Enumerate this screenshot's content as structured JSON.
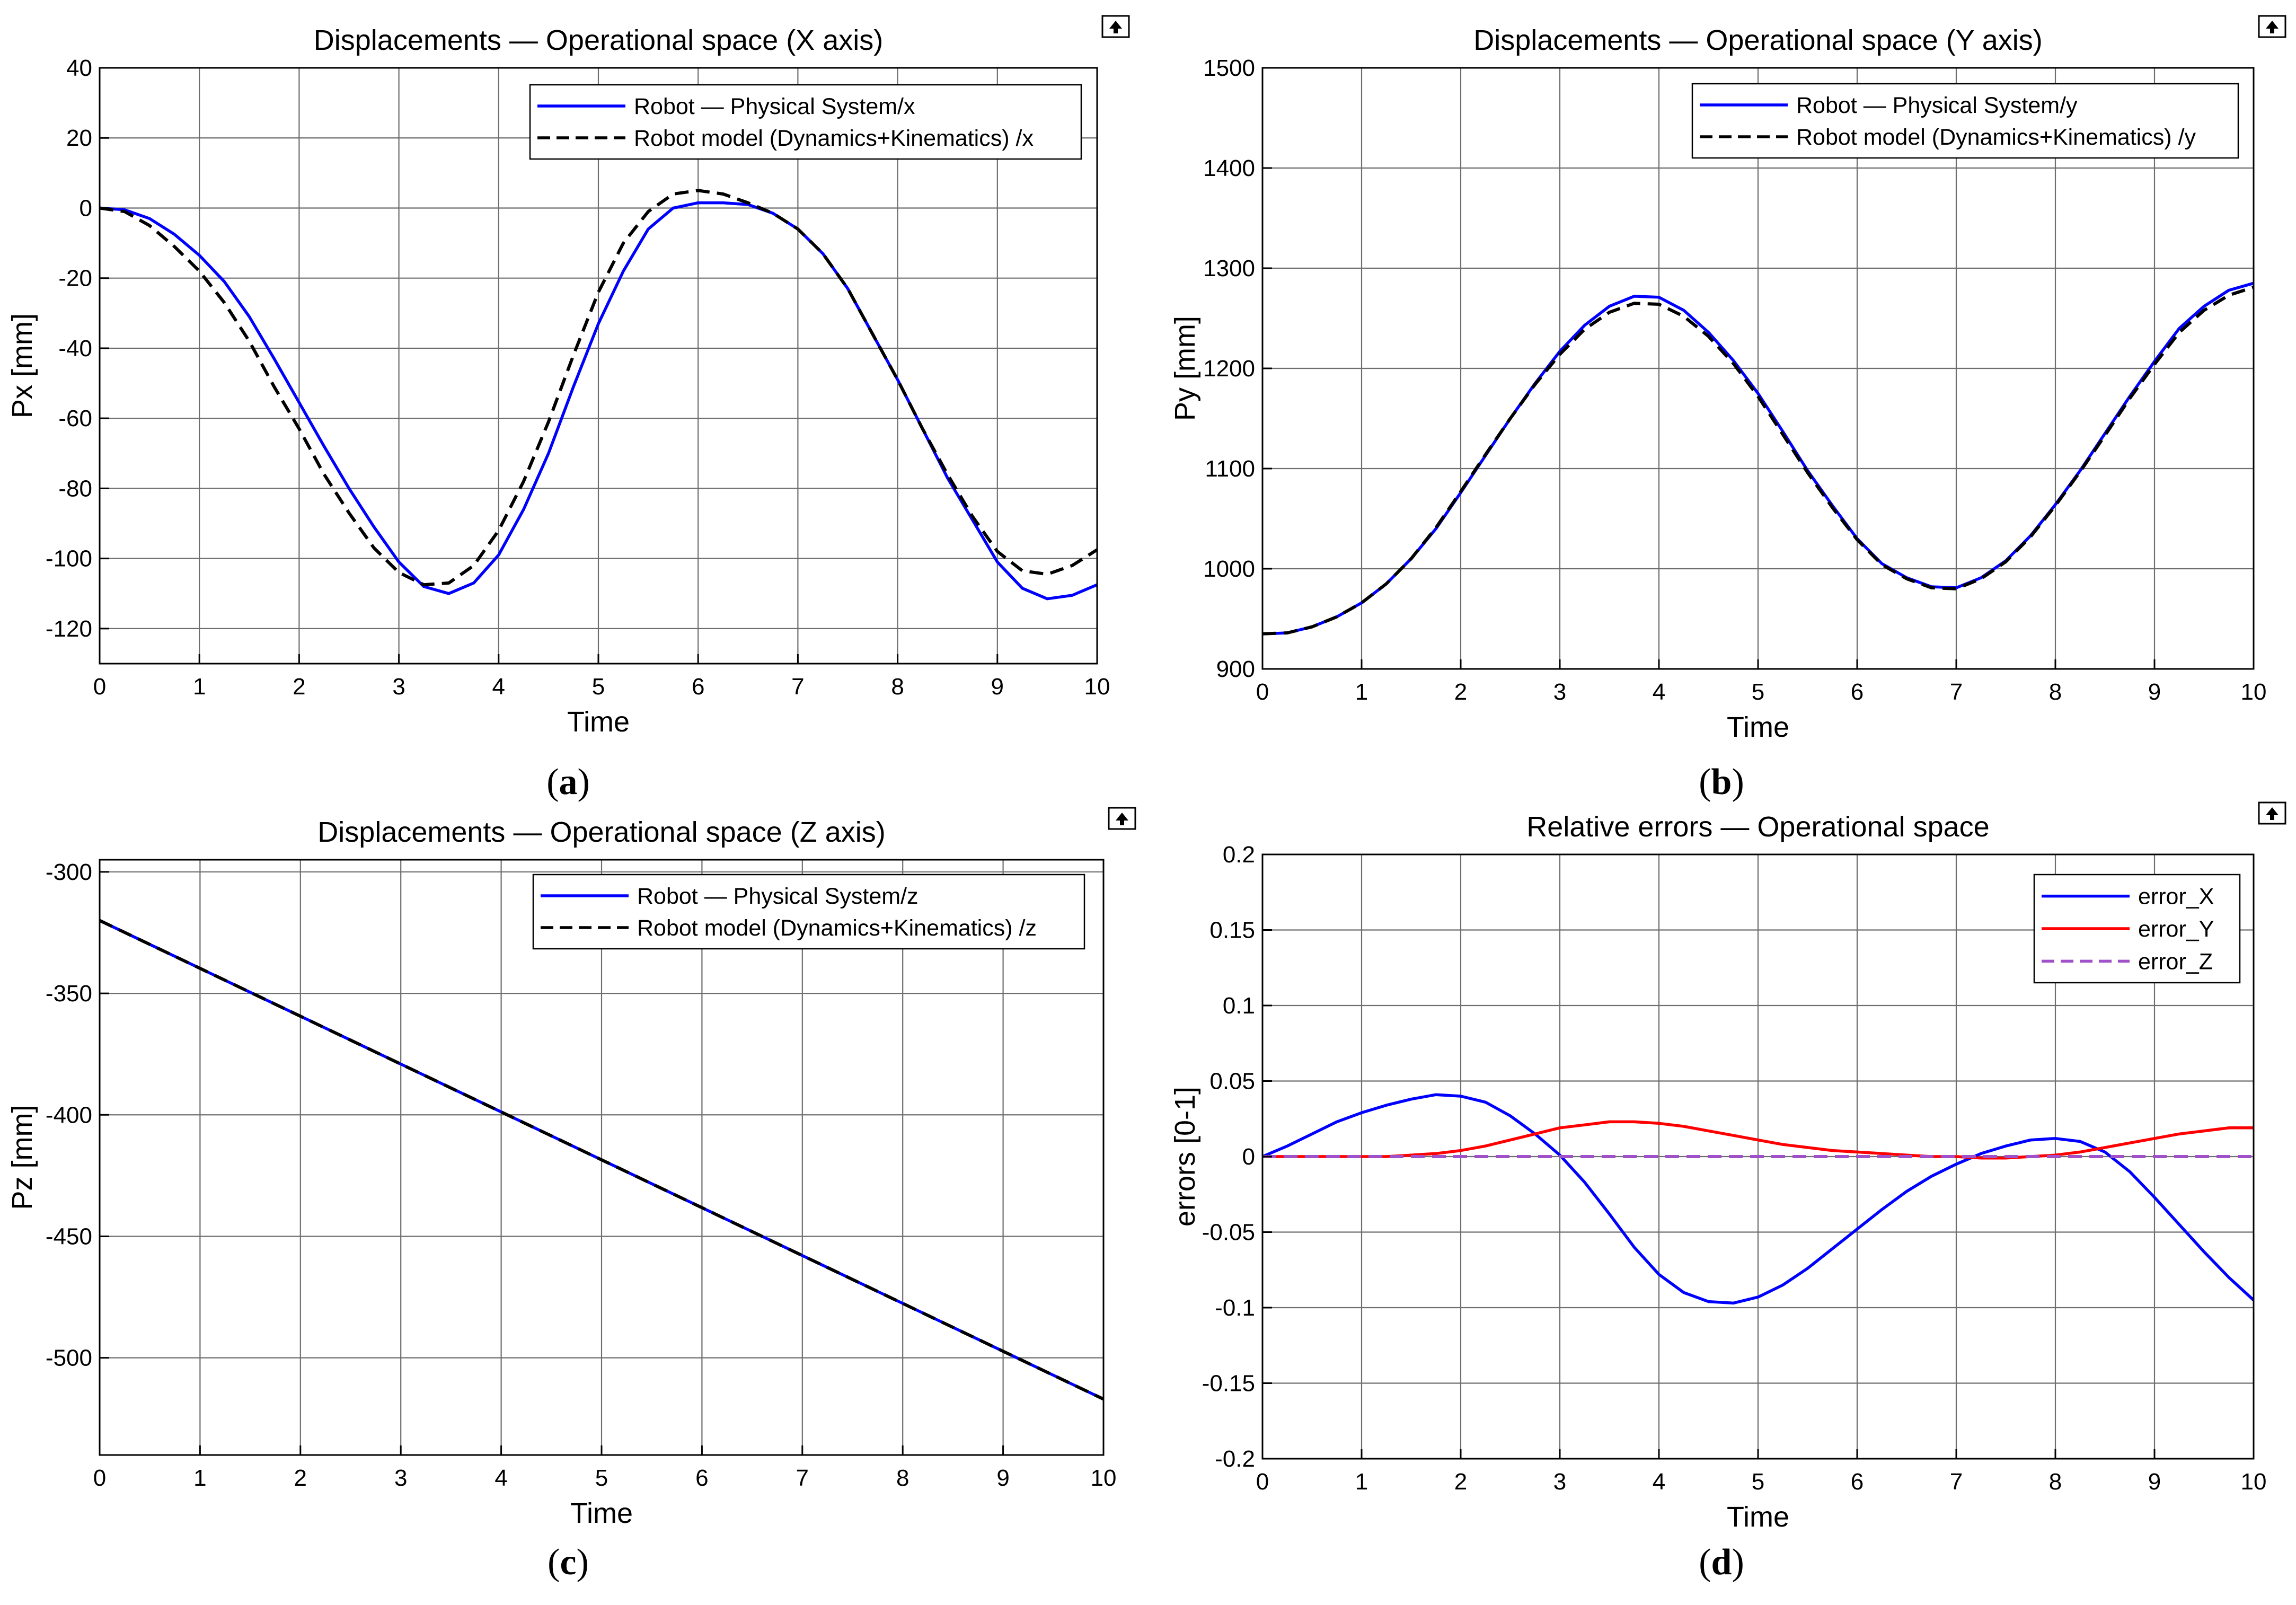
{
  "colors": {
    "blue": "#0000ff",
    "black": "#000000",
    "red": "#ff0000",
    "purple": "#a050c8",
    "grid": "#6e6e6e"
  },
  "dock_icon": "undock-arrow-icon",
  "chart_data": [
    {
      "id": "a",
      "type": "line",
      "caption_letter": "a",
      "caption_open": "(",
      "caption_close": ")",
      "title": "Displacements — Operational space (X axis)",
      "xlabel": "Time",
      "ylabel": "Px [mm]",
      "xlim": [
        0,
        10
      ],
      "ylim": [
        -130,
        40
      ],
      "xticks": [
        0,
        1,
        2,
        3,
        4,
        5,
        6,
        7,
        8,
        9,
        10
      ],
      "yticks": [
        -120,
        -100,
        -80,
        -60,
        -40,
        -20,
        0,
        20,
        40
      ],
      "ytick_labels": [
        "-120",
        "-100",
        "-80",
        "-60",
        "-40",
        "-20",
        "0",
        "20",
        "40"
      ],
      "grid": true,
      "legend_position": "top-right",
      "x": [
        0,
        0.25,
        0.5,
        0.75,
        1,
        1.25,
        1.5,
        1.75,
        2,
        2.25,
        2.5,
        2.75,
        3,
        3.25,
        3.5,
        3.75,
        4,
        4.25,
        4.5,
        4.75,
        5,
        5.25,
        5.5,
        5.75,
        6,
        6.25,
        6.5,
        6.75,
        7,
        7.25,
        7.5,
        7.75,
        8,
        8.25,
        8.5,
        8.75,
        9,
        9.25,
        9.5,
        9.75,
        10
      ],
      "series": [
        {
          "name": "Robot — Physical System/x",
          "color": "blue",
          "dash": "solid",
          "values": [
            0,
            -0.5,
            -3,
            -7.5,
            -13.5,
            -21,
            -31,
            -43,
            -55.5,
            -68,
            -80,
            -91,
            -101,
            -108,
            -110,
            -107,
            -99,
            -86,
            -70,
            -51,
            -33,
            -18,
            -6,
            0,
            1.5,
            1.5,
            1,
            -1.5,
            -6,
            -13,
            -23,
            -36,
            -49,
            -63,
            -77,
            -89,
            -101,
            -108.5,
            -111.5,
            -110.5,
            -107.5
          ]
        },
        {
          "name": "Robot model (Dynamics+Kinematics) /x",
          "color": "black",
          "dash": "dashed",
          "values": [
            0,
            -1,
            -5,
            -11,
            -18,
            -27,
            -38,
            -51,
            -63,
            -76,
            -87,
            -97,
            -104,
            -107.5,
            -107,
            -102,
            -92,
            -78,
            -61,
            -42,
            -24,
            -10,
            -1,
            4,
            5,
            4,
            1.5,
            -1.5,
            -6,
            -13,
            -23,
            -36,
            -49,
            -63,
            -76,
            -88,
            -98,
            -103.5,
            -104.5,
            -102,
            -97.5
          ]
        }
      ]
    },
    {
      "id": "b",
      "type": "line",
      "caption_letter": "b",
      "caption_open": "(",
      "caption_close": ")",
      "title": "Displacements — Operational space  (Y axis)",
      "xlabel": "Time",
      "ylabel": "Py [mm]",
      "xlim": [
        0,
        10
      ],
      "ylim": [
        900,
        1500
      ],
      "xticks": [
        0,
        1,
        2,
        3,
        4,
        5,
        6,
        7,
        8,
        9,
        10
      ],
      "yticks": [
        900,
        1000,
        1100,
        1200,
        1300,
        1400,
        1500
      ],
      "ytick_labels": [
        "900",
        "1000",
        "1100",
        "1200",
        "1300",
        "1400",
        "1500"
      ],
      "grid": true,
      "legend_position": "top-right",
      "x": [
        0,
        0.25,
        0.5,
        0.75,
        1,
        1.25,
        1.5,
        1.75,
        2,
        2.25,
        2.5,
        2.75,
        3,
        3.25,
        3.5,
        3.75,
        4,
        4.25,
        4.5,
        4.75,
        5,
        5.25,
        5.5,
        5.75,
        6,
        6.25,
        6.5,
        6.75,
        7,
        7.25,
        7.5,
        7.75,
        8,
        8.25,
        8.5,
        8.75,
        9,
        9.25,
        9.5,
        9.75,
        10
      ],
      "series": [
        {
          "name": "Robot — Physical System/y",
          "color": "blue",
          "dash": "solid",
          "values": [
            935,
            936,
            942,
            952,
            966,
            985,
            1010,
            1040,
            1076,
            1113,
            1150,
            1185,
            1217,
            1243,
            1262,
            1272,
            1271,
            1258,
            1236,
            1208,
            1175,
            1137,
            1098,
            1063,
            1030,
            1005,
            991,
            982,
            981,
            991,
            1008,
            1033,
            1064,
            1098,
            1135,
            1172,
            1207,
            1240,
            1262,
            1278,
            1285
          ]
        },
        {
          "name": "Robot model (Dynamics+Kinematics) /y",
          "color": "black",
          "dash": "dashed",
          "values": [
            935,
            936,
            942,
            952,
            966,
            985,
            1010,
            1041,
            1077,
            1114,
            1150,
            1184,
            1214,
            1239,
            1256,
            1265,
            1264,
            1252,
            1232,
            1205,
            1172,
            1134,
            1096,
            1061,
            1029,
            1004,
            990,
            981,
            980,
            990,
            1007,
            1032,
            1063,
            1097,
            1133,
            1170,
            1204,
            1236,
            1258,
            1273,
            1281
          ]
        }
      ]
    },
    {
      "id": "c",
      "type": "line",
      "caption_letter": "c",
      "caption_open": "(",
      "caption_close": ")",
      "title": "Displacements — Operational space (Z axis)",
      "xlabel": "Time",
      "ylabel": "Pz [mm]",
      "xlim": [
        0,
        10
      ],
      "ylim": [
        -540,
        -295
      ],
      "xticks": [
        0,
        1,
        2,
        3,
        4,
        5,
        6,
        7,
        8,
        9,
        10
      ],
      "yticks": [
        -500,
        -450,
        -400,
        -350,
        -300
      ],
      "ytick_labels": [
        "-500",
        "-450",
        "-400",
        "-350",
        "-300"
      ],
      "grid": true,
      "legend_position": "top-right",
      "x": [
        0,
        10
      ],
      "series": [
        {
          "name": "Robot — Physical System/z",
          "color": "blue",
          "dash": "solid",
          "values": [
            -320,
            -517
          ]
        },
        {
          "name": "Robot model (Dynamics+Kinematics) /z",
          "color": "black",
          "dash": "dashed",
          "values": [
            -320,
            -517
          ]
        }
      ]
    },
    {
      "id": "d",
      "type": "line",
      "caption_letter": "d",
      "caption_open": "(",
      "caption_close": ")",
      "title": "Relative errors — Operational space",
      "xlabel": "Time",
      "ylabel": "errors [0-1]",
      "xlim": [
        0,
        10
      ],
      "ylim": [
        -0.2,
        0.2
      ],
      "xticks": [
        0,
        1,
        2,
        3,
        4,
        5,
        6,
        7,
        8,
        9,
        10
      ],
      "yticks": [
        -0.2,
        -0.15,
        -0.1,
        -0.05,
        0,
        0.05,
        0.1,
        0.15,
        0.2
      ],
      "ytick_labels": [
        "-0.2",
        "-0.15",
        "-0.1",
        "-0.05",
        "0",
        "0.05",
        "0.1",
        "0.15",
        "0.2"
      ],
      "grid": true,
      "legend_position": "top-right",
      "x": [
        0,
        0.25,
        0.5,
        0.75,
        1,
        1.25,
        1.5,
        1.75,
        2,
        2.25,
        2.5,
        2.75,
        3,
        3.25,
        3.5,
        3.75,
        4,
        4.25,
        4.5,
        4.75,
        5,
        5.25,
        5.5,
        5.75,
        6,
        6.25,
        6.5,
        6.75,
        7,
        7.25,
        7.5,
        7.75,
        8,
        8.25,
        8.5,
        8.75,
        9,
        9.25,
        9.5,
        9.75,
        10
      ],
      "series": [
        {
          "name": "error_X",
          "color": "blue",
          "dash": "solid",
          "values": [
            0,
            0.007,
            0.015,
            0.023,
            0.029,
            0.034,
            0.038,
            0.041,
            0.04,
            0.036,
            0.027,
            0.015,
            0.001,
            -0.017,
            -0.038,
            -0.06,
            -0.078,
            -0.09,
            -0.096,
            -0.097,
            -0.093,
            -0.085,
            -0.074,
            -0.061,
            -0.048,
            -0.035,
            -0.023,
            -0.013,
            -0.005,
            0.002,
            0.007,
            0.011,
            0.012,
            0.01,
            0.003,
            -0.01,
            -0.027,
            -0.045,
            -0.063,
            -0.08,
            -0.095
          ]
        },
        {
          "name": "error_Y",
          "color": "red",
          "dash": "solid",
          "values": [
            0,
            0,
            0,
            0,
            0,
            0,
            0.001,
            0.002,
            0.004,
            0.007,
            0.011,
            0.015,
            0.019,
            0.021,
            0.023,
            0.023,
            0.022,
            0.02,
            0.017,
            0.014,
            0.011,
            0.008,
            0.006,
            0.004,
            0.003,
            0.002,
            0.001,
            0,
            0,
            -0.001,
            -0.001,
            0,
            0.001,
            0.003,
            0.006,
            0.009,
            0.012,
            0.015,
            0.017,
            0.019,
            0.019
          ]
        },
        {
          "name": "error_Z",
          "color": "purple",
          "dash": "dashed",
          "values": [
            0,
            0,
            0,
            0,
            0,
            0,
            0,
            0,
            0,
            0,
            0,
            0,
            0,
            0,
            0,
            0,
            0,
            0,
            0,
            0,
            0,
            0,
            0,
            0,
            0,
            0,
            0,
            0,
            0,
            0,
            0,
            0,
            0,
            0,
            0,
            0,
            0,
            0,
            0,
            0,
            0
          ]
        }
      ]
    }
  ]
}
